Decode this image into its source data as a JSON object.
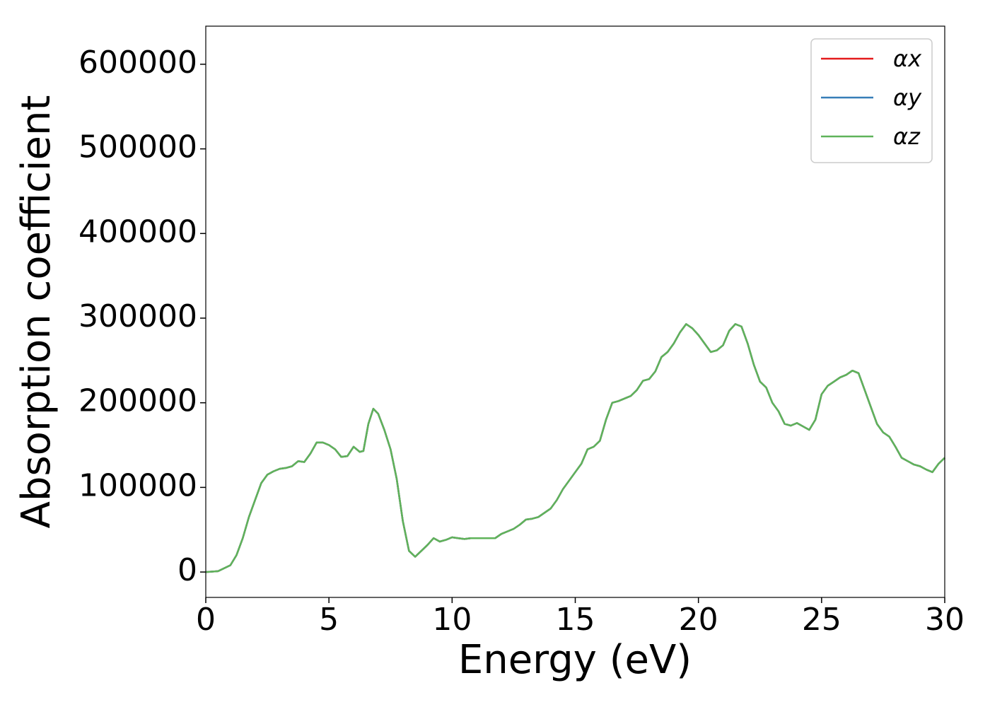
{
  "chart_data": {
    "type": "line",
    "xlabel": "Energy (eV)",
    "ylabel": "Absorption coefficient",
    "xlim": [
      0,
      30
    ],
    "xticks": [
      0,
      5,
      10,
      15,
      20,
      25,
      30
    ],
    "ylim": [
      -30000,
      645000
    ],
    "yticks": [
      0,
      100000,
      200000,
      300000,
      400000,
      500000,
      600000
    ],
    "legend": "upper right",
    "x": [
      0,
      0.5,
      1,
      1.25,
      1.5,
      1.75,
      2,
      2.25,
      2.5,
      2.75,
      3,
      3.25,
      3.5,
      3.75,
      4,
      4.25,
      4.5,
      4.75,
      5,
      5.25,
      5.5,
      5.75,
      6,
      6.25,
      6.4,
      6.6,
      6.8,
      7,
      7.25,
      7.5,
      7.75,
      8,
      8.25,
      8.5,
      8.75,
      9,
      9.25,
      9.5,
      9.75,
      10,
      10.25,
      10.5,
      10.75,
      11,
      11.25,
      11.5,
      11.75,
      12,
      12.25,
      12.5,
      12.75,
      13,
      13.25,
      13.5,
      13.75,
      14,
      14.25,
      14.5,
      14.75,
      15,
      15.25,
      15.5,
      15.75,
      16,
      16.25,
      16.5,
      16.75,
      17,
      17.25,
      17.5,
      17.75,
      18,
      18.25,
      18.5,
      18.75,
      19,
      19.25,
      19.5,
      19.75,
      20,
      20.25,
      20.5,
      20.75,
      21,
      21.25,
      21.5,
      21.75,
      22,
      22.25,
      22.5,
      22.75,
      23,
      23.25,
      23.5,
      23.75,
      24,
      24.25,
      24.5,
      24.75,
      25,
      25.25,
      25.5,
      25.75,
      26,
      26.25,
      26.5,
      26.75,
      27,
      27.25,
      27.5,
      27.75,
      28,
      28.25,
      28.5,
      28.75,
      29,
      29.25,
      29.5,
      29.75,
      30
    ],
    "series": [
      {
        "name": "αx",
        "color": "#e41a1c",
        "values": [
          0,
          1000,
          8000,
          20000,
          40000,
          65000,
          85000,
          105000,
          115000,
          119000,
          122000,
          123000,
          125000,
          131000,
          130000,
          140000,
          153000,
          153000,
          150000,
          145000,
          136000,
          137000,
          148000,
          142000,
          143000,
          175000,
          193000,
          187000,
          168000,
          145000,
          110000,
          60000,
          25000,
          18000,
          25000,
          32000,
          40000,
          36000,
          38000,
          41000,
          40000,
          39000,
          40000,
          40000,
          40000,
          40000,
          40000,
          45000,
          48000,
          51000,
          56000,
          62000,
          63000,
          65000,
          70000,
          75000,
          85000,
          98000,
          108000,
          118000,
          128000,
          145000,
          148000,
          155000,
          180000,
          200000,
          202000,
          205000,
          208000,
          215000,
          226000,
          228000,
          237000,
          254000,
          260000,
          270000,
          283000,
          293000,
          288000,
          280000,
          270000,
          260000,
          262000,
          268000,
          285000,
          293000,
          290000,
          270000,
          245000,
          225000,
          218000,
          200000,
          190000,
          175000,
          173000,
          176000,
          172000,
          168000,
          180000,
          210000,
          220000,
          225000,
          230000,
          233000,
          238000,
          235000,
          215000,
          195000,
          175000,
          165000,
          160000,
          148000,
          135000,
          131000,
          127000,
          125000,
          121000,
          118000,
          128000,
          135000
        ]
      },
      {
        "name": "αy",
        "color": "#377eb8",
        "values": [
          0,
          1000,
          8000,
          20000,
          40000,
          65000,
          85000,
          105000,
          115000,
          119000,
          122000,
          123000,
          125000,
          131000,
          130000,
          140000,
          153000,
          153000,
          150000,
          145000,
          136000,
          137000,
          148000,
          142000,
          143000,
          175000,
          193000,
          187000,
          168000,
          145000,
          110000,
          60000,
          25000,
          18000,
          25000,
          32000,
          40000,
          36000,
          38000,
          41000,
          40000,
          39000,
          40000,
          40000,
          40000,
          40000,
          40000,
          45000,
          48000,
          51000,
          56000,
          62000,
          63000,
          65000,
          70000,
          75000,
          85000,
          98000,
          108000,
          118000,
          128000,
          145000,
          148000,
          155000,
          180000,
          200000,
          202000,
          205000,
          208000,
          215000,
          226000,
          228000,
          237000,
          254000,
          260000,
          270000,
          283000,
          293000,
          288000,
          280000,
          270000,
          260000,
          262000,
          268000,
          285000,
          293000,
          290000,
          270000,
          245000,
          225000,
          218000,
          200000,
          190000,
          175000,
          173000,
          176000,
          172000,
          168000,
          180000,
          210000,
          220000,
          225000,
          230000,
          233000,
          238000,
          235000,
          215000,
          195000,
          175000,
          165000,
          160000,
          148000,
          135000,
          131000,
          127000,
          125000,
          121000,
          118000,
          128000,
          135000
        ]
      },
      {
        "name": "αz",
        "color": "#5fb35a",
        "values": [
          0,
          1000,
          8000,
          20000,
          40000,
          65000,
          85000,
          105000,
          115000,
          119000,
          122000,
          123000,
          125000,
          131000,
          130000,
          140000,
          153000,
          153000,
          150000,
          145000,
          136000,
          137000,
          148000,
          142000,
          143000,
          175000,
          193000,
          187000,
          168000,
          145000,
          110000,
          60000,
          25000,
          18000,
          25000,
          32000,
          40000,
          36000,
          38000,
          41000,
          40000,
          39000,
          40000,
          40000,
          40000,
          40000,
          40000,
          45000,
          48000,
          51000,
          56000,
          62000,
          63000,
          65000,
          70000,
          75000,
          85000,
          98000,
          108000,
          118000,
          128000,
          145000,
          148000,
          155000,
          180000,
          200000,
          202000,
          205000,
          208000,
          215000,
          226000,
          228000,
          237000,
          254000,
          260000,
          270000,
          283000,
          293000,
          288000,
          280000,
          270000,
          260000,
          262000,
          268000,
          285000,
          293000,
          290000,
          270000,
          245000,
          225000,
          218000,
          200000,
          190000,
          175000,
          173000,
          176000,
          172000,
          168000,
          180000,
          210000,
          220000,
          225000,
          230000,
          233000,
          238000,
          235000,
          215000,
          195000,
          175000,
          165000,
          160000,
          148000,
          135000,
          131000,
          127000,
          125000,
          121000,
          118000,
          128000,
          135000
        ]
      }
    ]
  }
}
